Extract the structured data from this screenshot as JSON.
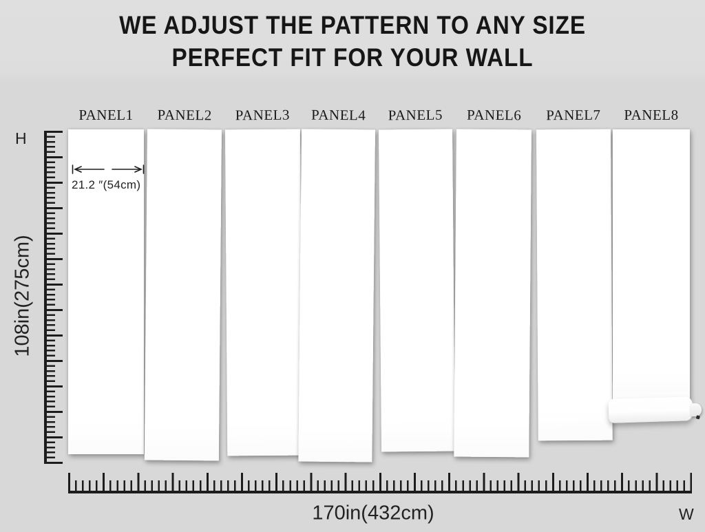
{
  "title": {
    "line1": "WE ADJUST THE PATTERN TO ANY SIZE",
    "line2": "PERFECT FIT FOR YOUR WALL"
  },
  "panels": [
    {
      "label": "PANEL1"
    },
    {
      "label": "PANEL2"
    },
    {
      "label": "PANEL3"
    },
    {
      "label": "PANEL4"
    },
    {
      "label": "PANEL5"
    },
    {
      "label": "PANEL6"
    },
    {
      "label": "PANEL7"
    },
    {
      "label": "PANEL8"
    }
  ],
  "annotation": {
    "panel_width": "21.2 ″(54cm)"
  },
  "rulers": {
    "height": {
      "letter": "H",
      "value": "108in(275cm)"
    },
    "width": {
      "letter": "W",
      "value": "170in(432cm)"
    }
  },
  "colors": {
    "background": "#d9d9d9",
    "panel": "#ffffff",
    "ink": "#1c1c1c"
  }
}
